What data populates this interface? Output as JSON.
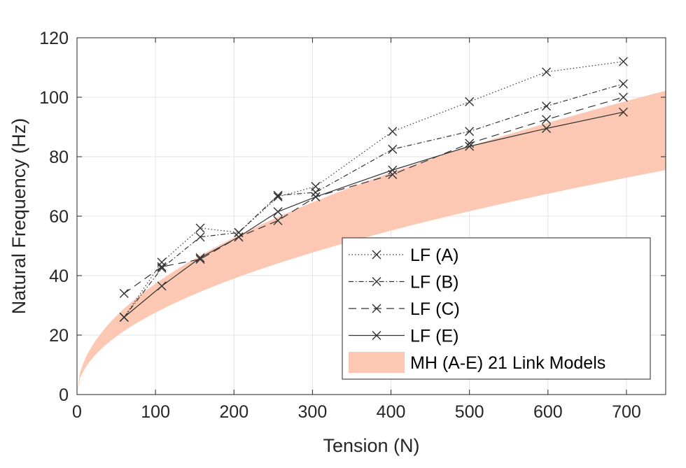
{
  "chart_data": {
    "type": "line",
    "title": "",
    "xlabel": "Tension (N)",
    "ylabel": "Natural Frequency (Hz)",
    "xlim": [
      0,
      750
    ],
    "ylim": [
      0,
      120
    ],
    "xticks": [
      0,
      100,
      200,
      300,
      400,
      500,
      600,
      700
    ],
    "yticks": [
      0,
      20,
      40,
      60,
      80,
      100,
      120
    ],
    "xtick_labels": [
      "0",
      "100",
      "200",
      "300",
      "400",
      "500",
      "600",
      "700"
    ],
    "ytick_labels": [
      "0",
      "20",
      "40",
      "60",
      "80",
      "100",
      "120"
    ],
    "grid": true,
    "legend_position": "bottom-right",
    "series": [
      {
        "name": "LF (A)",
        "line_style": "dotted",
        "marker": "x",
        "x": [
          60,
          108,
          157,
          206,
          256,
          304,
          402,
          500,
          598,
          696
        ],
        "y": [
          26,
          44.5,
          56,
          54.5,
          66.5,
          70,
          88.5,
          98.5,
          108.5,
          112
        ]
      },
      {
        "name": "LF (B)",
        "line_style": "dash-dot",
        "marker": "x",
        "x": [
          60,
          108,
          157,
          206,
          256,
          304,
          402,
          500,
          598,
          696
        ],
        "y": [
          26,
          42.5,
          53,
          54.5,
          67,
          68,
          82.5,
          88.5,
          97,
          104.5
        ]
      },
      {
        "name": "LF (C)",
        "line_style": "dashed",
        "marker": "x",
        "x": [
          60,
          108,
          157,
          206,
          256,
          304,
          402,
          500,
          598,
          696
        ],
        "y": [
          34,
          43,
          45.5,
          53,
          58.5,
          66.5,
          74,
          84.5,
          92.5,
          100
        ]
      },
      {
        "name": "LF (E)",
        "line_style": "solid",
        "marker": "x",
        "x": [
          60,
          108,
          157,
          206,
          256,
          304,
          402,
          500,
          598,
          696
        ],
        "y": [
          26,
          36.5,
          46,
          53,
          61.5,
          66.5,
          75.5,
          83.5,
          89.5,
          95
        ]
      }
    ],
    "band": {
      "name": "MH (A-E) 21 Link Models",
      "color": "#fcc8b4",
      "x": [
        0,
        10,
        25,
        50,
        100,
        150,
        200,
        250,
        300,
        400,
        500,
        600,
        700,
        750
      ],
      "lower": [
        0,
        8.7,
        13.8,
        19.5,
        27.5,
        33.8,
        39,
        43.6,
        47.7,
        55.1,
        61.6,
        67.5,
        72.9,
        75.5
      ],
      "upper": [
        0,
        11.8,
        18.7,
        26.4,
        37.3,
        45.7,
        52.8,
        59,
        64.6,
        74.6,
        83.4,
        91.4,
        98.7,
        102.2
      ]
    }
  },
  "legend": {
    "items": [
      "LF (A)",
      "LF (B)",
      "LF (C)",
      "LF (E)",
      "MH (A-E) 21 Link Models"
    ]
  },
  "colors": {
    "line": "#333333",
    "axis": "#262626",
    "grid": "#e3e3e3",
    "band": "#fcc8b4"
  }
}
